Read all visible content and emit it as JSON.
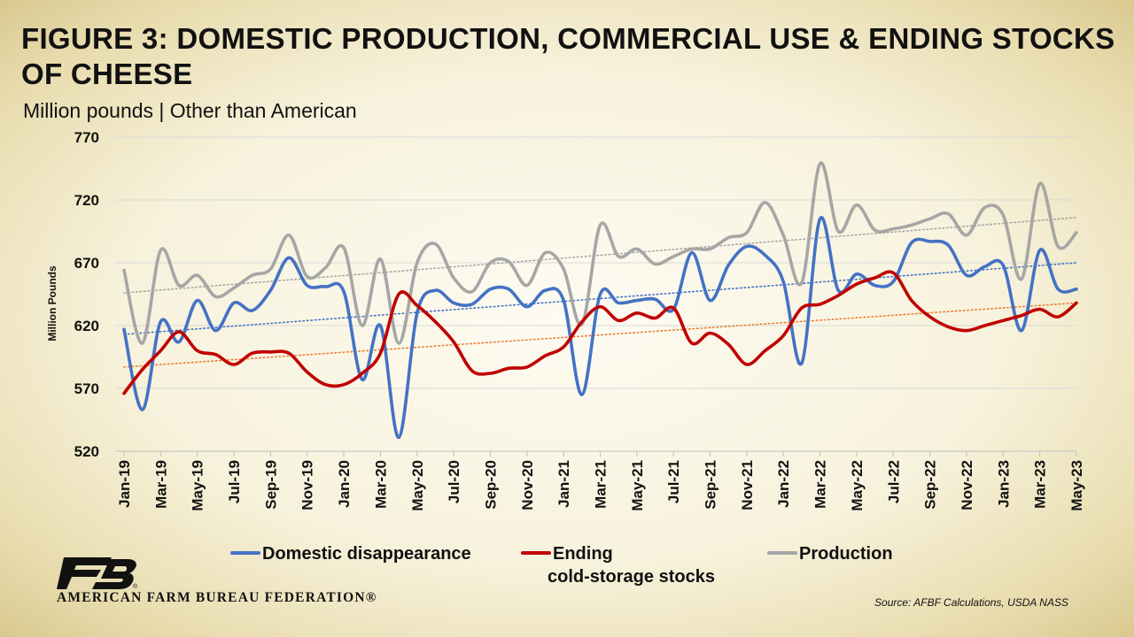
{
  "header": {
    "title": "FIGURE 3: DOMESTIC PRODUCTION, COMMERCIAL USE & ENDING STOCKS OF CHEESE",
    "subtitle": "Million pounds | Other than American"
  },
  "footer": {
    "org_name": "AMERICAN FARM BUREAU FEDERATION®",
    "source": "Source: AFBF Calculations, USDA NASS"
  },
  "colors": {
    "domestic": "#4472c4",
    "stocks": "#c00000",
    "production": "#a6a6a6",
    "trend_domestic": "#4472c4",
    "trend_stocks": "#ed7d31",
    "trend_production": "#a6a6a6",
    "grid": "#d9d9d9"
  },
  "chart_data": {
    "type": "line",
    "ylabel": "Million Pounds",
    "ylim": [
      520,
      770
    ],
    "yticks": [
      520,
      570,
      620,
      670,
      720,
      770
    ],
    "grid": true,
    "legend_position": "bottom",
    "tick_labels": [
      "Jan-19",
      "Mar-19",
      "May-19",
      "Jul-19",
      "Sep-19",
      "Nov-19",
      "Jan-20",
      "Mar-20",
      "May-20",
      "Jul-20",
      "Sep-20",
      "Nov-20",
      "Jan-21",
      "Mar-21",
      "May-21",
      "Jul-21",
      "Sep-21",
      "Nov-21",
      "Jan-22",
      "Mar-22",
      "May-22",
      "Jul-22",
      "Sep-22",
      "Nov-22",
      "Jan-23",
      "Mar-23",
      "May-23"
    ],
    "x": [
      "Jan-19",
      "Feb-19",
      "Mar-19",
      "Apr-19",
      "May-19",
      "Jun-19",
      "Jul-19",
      "Aug-19",
      "Sep-19",
      "Oct-19",
      "Nov-19",
      "Dec-19",
      "Jan-20",
      "Feb-20",
      "Mar-20",
      "Apr-20",
      "May-20",
      "Jun-20",
      "Jul-20",
      "Aug-20",
      "Sep-20",
      "Oct-20",
      "Nov-20",
      "Dec-20",
      "Jan-21",
      "Feb-21",
      "Mar-21",
      "Apr-21",
      "May-21",
      "Jun-21",
      "Jul-21",
      "Aug-21",
      "Sep-21",
      "Oct-21",
      "Nov-21",
      "Dec-21",
      "Jan-22",
      "Feb-22",
      "Mar-22",
      "Apr-22",
      "May-22",
      "Jun-22",
      "Jul-22",
      "Aug-22",
      "Sep-22",
      "Oct-22",
      "Nov-22",
      "Dec-22",
      "Jan-23",
      "Feb-23",
      "Mar-23",
      "Apr-23",
      "May-23"
    ],
    "series": [
      {
        "name": "Domestic disappearance",
        "color_key": "domestic",
        "values": [
          617,
          553,
          623,
          607,
          640,
          616,
          638,
          632,
          648,
          674,
          652,
          651,
          647,
          577,
          620,
          531,
          630,
          648,
          638,
          637,
          649,
          649,
          635,
          648,
          640,
          565,
          645,
          638,
          640,
          641,
          633,
          678,
          640,
          668,
          683,
          676,
          655,
          590,
          705,
          648,
          661,
          652,
          655,
          686,
          687,
          684,
          660,
          667,
          668,
          616,
          680,
          649,
          649
        ]
      },
      {
        "name": "Ending\ncold-storage stocks",
        "color_key": "stocks",
        "values": [
          566,
          585,
          600,
          615,
          600,
          597,
          589,
          598,
          599,
          598,
          583,
          573,
          573,
          582,
          598,
          645,
          636,
          623,
          607,
          584,
          582,
          586,
          587,
          596,
          603,
          623,
          635,
          624,
          630,
          626,
          634,
          606,
          614,
          605,
          589,
          600,
          612,
          634,
          637,
          644,
          653,
          658,
          662,
          640,
          627,
          619,
          616,
          620,
          624,
          628,
          633,
          627,
          638
        ]
      },
      {
        "name": "Production",
        "color_key": "production",
        "values": [
          664,
          606,
          680,
          652,
          660,
          643,
          650,
          660,
          665,
          692,
          659,
          666,
          682,
          620,
          673,
          606,
          670,
          685,
          658,
          647,
          670,
          671,
          652,
          678,
          665,
          621,
          700,
          675,
          681,
          669,
          675,
          681,
          681,
          690,
          694,
          718,
          692,
          654,
          749,
          695,
          716,
          696,
          697,
          700,
          705,
          709,
          692,
          714,
          708,
          657,
          733,
          683,
          694
        ]
      }
    ],
    "trendlines": [
      {
        "series": "Domestic disappearance",
        "color_key": "trend_domestic",
        "start": 613,
        "end": 670
      },
      {
        "series": "Ending\ncold-storage stocks",
        "color_key": "trend_stocks",
        "start": 587,
        "end": 638
      },
      {
        "series": "Production",
        "color_key": "trend_production",
        "start": 646,
        "end": 706
      }
    ],
    "legend": [
      {
        "label": "Domestic disappearance",
        "color_key": "domestic"
      },
      {
        "label": "Ending",
        "label2": "cold-storage stocks",
        "color_key": "stocks"
      },
      {
        "label": "Production",
        "color_key": "production"
      }
    ]
  }
}
